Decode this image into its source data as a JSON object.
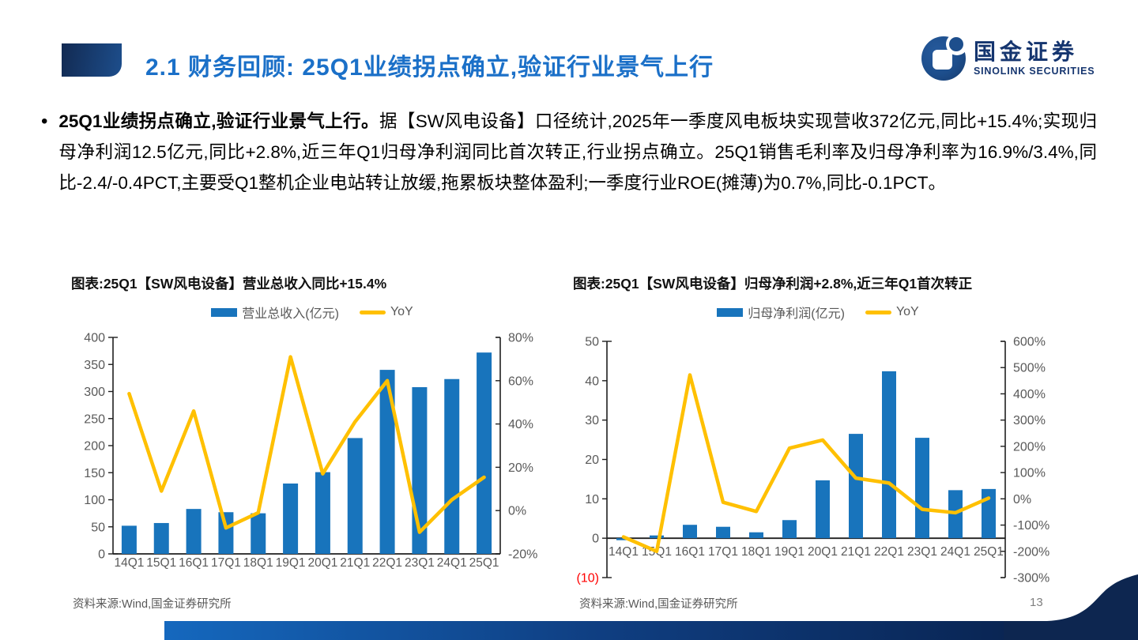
{
  "header": {
    "section_title": "2.1 财务回顾: 25Q1业绩拐点确立,验证行业景气上行"
  },
  "logo": {
    "cn": "国金证券",
    "en": "SINOLINK SECURITIES"
  },
  "body": {
    "bullet": "•",
    "lead": "25Q1业绩拐点确立,验证行业景气上行。",
    "text": "据【SW风电设备】口径统计,2025年一季度风电板块实现营收372亿元,同比+15.4%;实现归母净利润12.5亿元,同比+2.8%,近三年Q1归母净利润同比首次转正,行业拐点确立。25Q1销售毛利率及归母净利率为16.9%/3.4%,同比-2.4/-0.4PCT,主要受Q1整机企业电站转让放缓,拖累板块整体盈利;一季度行业ROE(摊薄)为0.7%,同比-0.1PCT。"
  },
  "chart_data": [
    {
      "type": "bar+line",
      "title": "图表:25Q1【SW风电设备】营业总收入同比+15.4%",
      "categories": [
        "14Q1",
        "15Q1",
        "16Q1",
        "17Q1",
        "18Q1",
        "19Q1",
        "20Q1",
        "21Q1",
        "22Q1",
        "23Q1",
        "24Q1",
        "25Q1"
      ],
      "series": [
        {
          "name": "营业总收入(亿元)",
          "type": "bar",
          "axis": "left",
          "values": [
            52,
            57,
            83,
            77,
            75,
            130,
            151,
            214,
            340,
            308,
            323,
            372
          ]
        },
        {
          "name": "YoY",
          "type": "line",
          "axis": "right",
          "values": [
            54,
            9,
            46,
            -8,
            -1,
            71,
            17,
            41,
            60,
            -10,
            5,
            15.4
          ]
        }
      ],
      "left_axis": {
        "min": 0,
        "max": 400,
        "step": 50
      },
      "right_axis": {
        "min": -20,
        "max": 80,
        "step": 20,
        "suffix": "%"
      },
      "legend_position": "top",
      "grid": false
    },
    {
      "type": "bar+line",
      "title": "图表:25Q1【SW风电设备】归母净利润+2.8%,近三年Q1首次转正",
      "categories": [
        "14Q1",
        "15Q1",
        "16Q1",
        "17Q1",
        "18Q1",
        "19Q1",
        "20Q1",
        "21Q1",
        "22Q1",
        "23Q1",
        "24Q1",
        "25Q1"
      ],
      "series": [
        {
          "name": "归母净利润(亿元)",
          "type": "bar",
          "axis": "left",
          "values": [
            -0.5,
            0.7,
            3.4,
            2.9,
            1.5,
            4.6,
            14.7,
            26.5,
            42.4,
            25.5,
            12.2,
            12.5
          ]
        },
        {
          "name": "YoY",
          "type": "line",
          "axis": "right",
          "values": [
            -145,
            -200,
            472,
            -13,
            -48,
            193,
            224,
            79,
            60,
            -40,
            -53,
            2.8
          ]
        }
      ],
      "left_axis": {
        "min": -10,
        "max": 50,
        "step": 10,
        "negative_parens_red": true
      },
      "right_axis": {
        "min": -300,
        "max": 600,
        "step": 100,
        "suffix": "%"
      },
      "legend_position": "top",
      "grid": false
    }
  ],
  "sources": [
    "资料来源:Wind,国金证券研究所",
    "资料来源:Wind,国金证券研究所"
  ],
  "page_number": "13",
  "colors": {
    "bar": "#1874BC",
    "line": "#FFC000",
    "title_blue": "#1B70C8",
    "navy_dark": "#0D2650",
    "header_navy_left": "#122A52",
    "header_navy_right": "#1D4E8C",
    "logo_blue": "#1D4E8C",
    "text_gray": "#595959",
    "negative_red": "#FF0000",
    "footer_gradient_left": "#1568BE",
    "footer_gradient_right": "#081D45"
  }
}
